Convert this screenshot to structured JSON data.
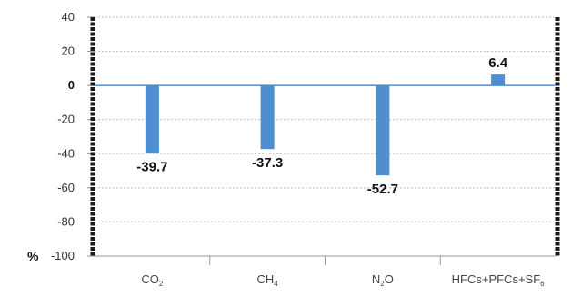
{
  "chart_data": {
    "type": "bar",
    "categories": [
      "CO2",
      "CH4",
      "N2O",
      "HFCs+PFCs+SF6"
    ],
    "category_labels": [
      {
        "main": "CO",
        "sub": "2",
        "rest": ""
      },
      {
        "main": "CH",
        "sub": "4",
        "rest": ""
      },
      {
        "main": "N",
        "sub": "2",
        "rest": "O"
      },
      {
        "main": "HFCs+PFCs+SF",
        "sub": "6",
        "rest": ""
      }
    ],
    "values": [
      -39.7,
      -37.3,
      -52.7,
      6.4
    ],
    "value_labels": [
      "-39.7",
      "-37.3",
      "-52.7",
      "6.4"
    ],
    "title": "",
    "xlabel": "",
    "ylabel": "%",
    "ylim": [
      -100,
      40
    ],
    "yticks": [
      40,
      20,
      0,
      -20,
      -40,
      -60,
      -80,
      -100
    ],
    "ytick_labels": [
      "40",
      "20",
      "0",
      "-20",
      "-40",
      "-60",
      "-80",
      "-100"
    ],
    "grid": true,
    "bar_color": "#4f8fd0",
    "zero_line_color": "#4f8fd0",
    "frame_color": "#1a1a1a"
  }
}
